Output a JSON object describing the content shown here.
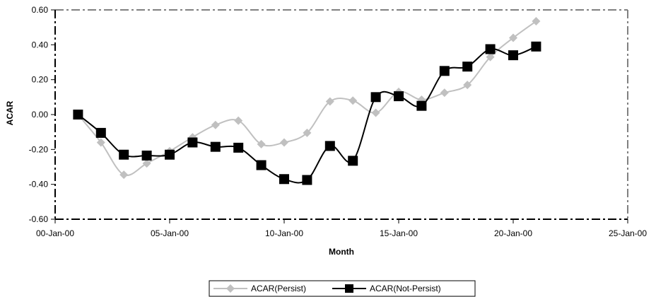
{
  "chart_data": {
    "type": "line",
    "xlabel": "Month",
    "ylabel": "ACAR",
    "xlim": [
      0,
      25
    ],
    "ylim": [
      -0.6,
      0.6
    ],
    "x_ticks": [
      0,
      5,
      10,
      15,
      20,
      25
    ],
    "x_tick_labels": [
      "00-Jan-00",
      "05-Jan-00",
      "10-Jan-00",
      "15-Jan-00",
      "20-Jan-00",
      "25-Jan-00"
    ],
    "y_ticks": [
      -0.6,
      -0.4,
      -0.2,
      0.0,
      0.2,
      0.4,
      0.6
    ],
    "y_tick_labels": [
      "-0.60",
      "-0.40",
      "-0.20",
      "0.00",
      "0.20",
      "0.40",
      "0.60"
    ],
    "grid": false,
    "legend_position": "bottom-center",
    "x": [
      1,
      2,
      3,
      4,
      5,
      6,
      7,
      8,
      9,
      10,
      11,
      12,
      13,
      14,
      15,
      16,
      17,
      18,
      19,
      20,
      21
    ],
    "series": [
      {
        "name": "ACAR(Persist)",
        "color": "#c0c0c0",
        "marker": "diamond",
        "values": [
          0.0,
          -0.16,
          -0.345,
          -0.28,
          -0.21,
          -0.13,
          -0.06,
          -0.035,
          -0.17,
          -0.16,
          -0.105,
          0.075,
          0.08,
          0.01,
          0.13,
          0.085,
          0.125,
          0.17,
          0.33,
          0.44,
          0.535
        ]
      },
      {
        "name": "ACAR(Not-Persist)",
        "color": "#000000",
        "marker": "square",
        "values": [
          0.0,
          -0.105,
          -0.23,
          -0.235,
          -0.23,
          -0.16,
          -0.185,
          -0.19,
          -0.29,
          -0.37,
          -0.375,
          -0.18,
          -0.265,
          0.1,
          0.105,
          0.05,
          0.25,
          0.275,
          0.375,
          0.34,
          0.39
        ]
      }
    ]
  }
}
